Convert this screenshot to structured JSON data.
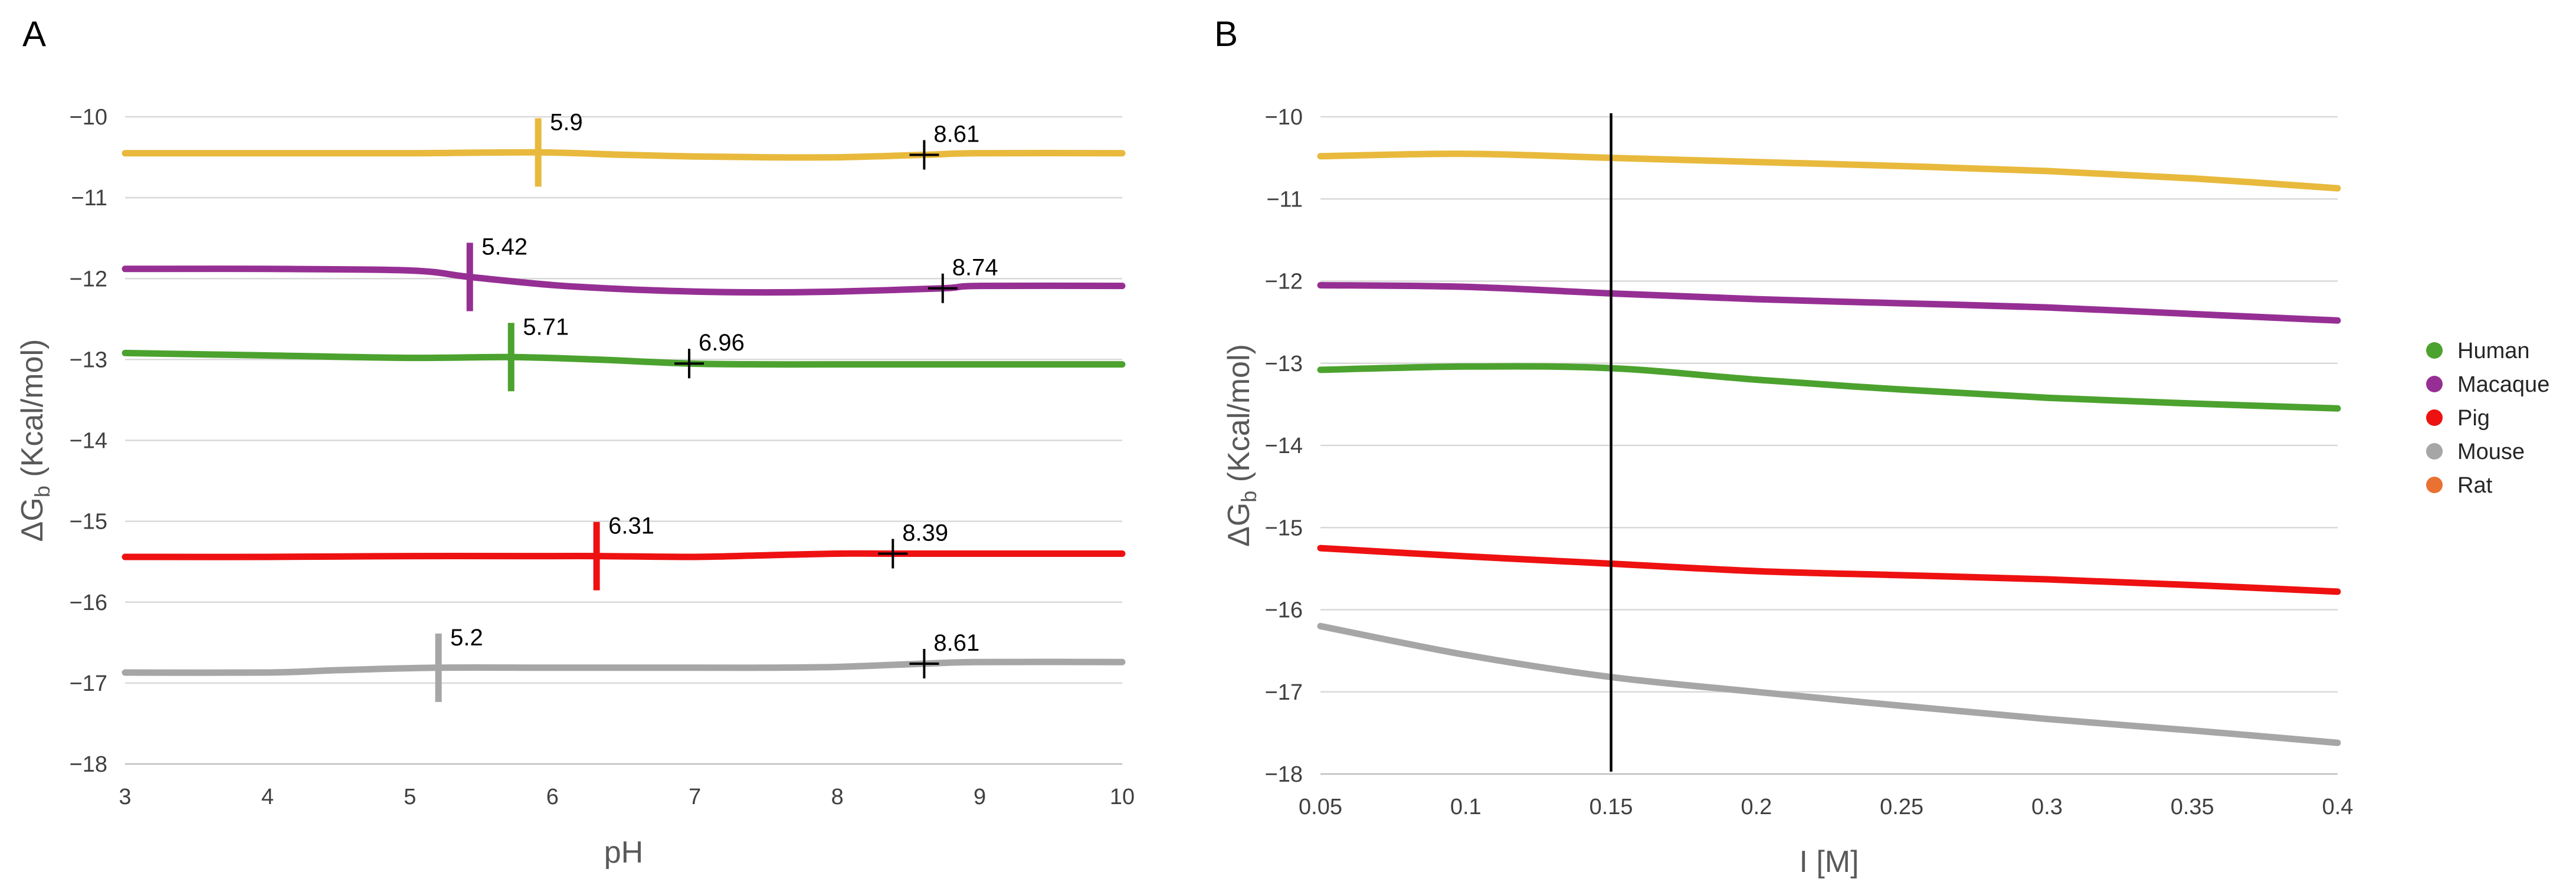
{
  "chart_data": [
    {
      "type": "line",
      "panel_label": "A",
      "xlabel": "pH",
      "ylabel_main": "ΔG",
      "ylabel_sub": "b",
      "ylabel_unit": " (Kcal/mol)",
      "xlim": [
        3,
        10
      ],
      "ylim": [
        -18,
        -10
      ],
      "xticks": [
        "3",
        "4",
        "5",
        "6",
        "7",
        "8",
        "9",
        "10"
      ],
      "yticks": [
        "−18",
        "−17",
        "−16",
        "−15",
        "−14",
        "−13",
        "−12",
        "−11",
        "−10"
      ],
      "grid": true,
      "series": [
        {
          "name": "Rat",
          "color": "#E8B93C",
          "x": [
            3,
            4,
            5,
            5.9,
            6.5,
            7,
            7.5,
            8,
            8.61,
            9,
            10
          ],
          "y": [
            -10.45,
            -10.45,
            -10.45,
            -10.44,
            -10.47,
            -10.49,
            -10.5,
            -10.5,
            -10.47,
            -10.45,
            -10.45
          ],
          "pka_lines": [
            {
              "x": 5.9,
              "label": "5.9",
              "type": "bar"
            },
            {
              "x": 8.61,
              "label": "8.61",
              "type": "cross"
            }
          ]
        },
        {
          "name": "Macaque",
          "color": "#962F94",
          "x": [
            3,
            4,
            5,
            5.42,
            6,
            6.5,
            7,
            7.5,
            8,
            8.74,
            9,
            10
          ],
          "y": [
            -11.88,
            -11.88,
            -11.9,
            -11.98,
            -12.08,
            -12.13,
            -12.16,
            -12.17,
            -12.16,
            -12.12,
            -12.09,
            -12.09
          ],
          "pka_lines": [
            {
              "x": 5.42,
              "label": "5.42",
              "type": "bar"
            },
            {
              "x": 8.74,
              "label": "8.74",
              "type": "cross"
            }
          ]
        },
        {
          "name": "Human",
          "color": "#4CA22E",
          "x": [
            3,
            4,
            5,
            5.71,
            6.3,
            6.96,
            7.5,
            8,
            9,
            10
          ],
          "y": [
            -12.92,
            -12.95,
            -12.98,
            -12.97,
            -13.0,
            -13.05,
            -13.06,
            -13.06,
            -13.06,
            -13.06
          ],
          "pka_lines": [
            {
              "x": 5.71,
              "label": "5.71",
              "type": "bar"
            },
            {
              "x": 6.96,
              "label": "6.96",
              "type": "cross"
            }
          ]
        },
        {
          "name": "Pig",
          "color": "#EE1111",
          "x": [
            3,
            4,
            5,
            6,
            6.31,
            7,
            7.5,
            8,
            8.39,
            9,
            10
          ],
          "y": [
            -15.44,
            -15.44,
            -15.43,
            -15.43,
            -15.43,
            -15.44,
            -15.42,
            -15.4,
            -15.4,
            -15.4,
            -15.4
          ],
          "pka_lines": [
            {
              "x": 6.31,
              "label": "6.31",
              "type": "bar"
            },
            {
              "x": 8.39,
              "label": "8.39",
              "type": "cross"
            }
          ]
        },
        {
          "name": "Mouse",
          "color": "#A6A6A6",
          "x": [
            3,
            4,
            4.5,
            5.2,
            6,
            7,
            7.5,
            8,
            8.61,
            9,
            10
          ],
          "y": [
            -16.87,
            -16.87,
            -16.84,
            -16.81,
            -16.81,
            -16.81,
            -16.81,
            -16.8,
            -16.76,
            -16.74,
            -16.74
          ],
          "pka_lines": [
            {
              "x": 5.2,
              "label": "5.2",
              "type": "bar"
            },
            {
              "x": 8.61,
              "label": "8.61",
              "type": "cross"
            }
          ]
        }
      ]
    },
    {
      "type": "line",
      "panel_label": "B",
      "xlabel": "I [M]",
      "ylabel_main": "ΔG",
      "ylabel_sub": "b",
      "ylabel_unit": " (Kcal/mol)",
      "xlim": [
        0.05,
        0.4
      ],
      "ylim": [
        -18,
        -10
      ],
      "xticks": [
        "0.05",
        "0.1",
        "0.15",
        "0.2",
        "0.25",
        "0.3",
        "0.35",
        "0.4"
      ],
      "yticks": [
        "−18",
        "−17",
        "−16",
        "−15",
        "−14",
        "−13",
        "−12",
        "−11",
        "−10"
      ],
      "grid": true,
      "reference_line_x": 0.15,
      "series": [
        {
          "name": "Rat",
          "color": "#E8B93C",
          "x": [
            0.05,
            0.1,
            0.15,
            0.2,
            0.25,
            0.3,
            0.35,
            0.4
          ],
          "y": [
            -10.48,
            -10.45,
            -10.5,
            -10.55,
            -10.6,
            -10.66,
            -10.75,
            -10.87
          ]
        },
        {
          "name": "Macaque",
          "color": "#962F94",
          "x": [
            0.05,
            0.1,
            0.15,
            0.2,
            0.25,
            0.3,
            0.35,
            0.4
          ],
          "y": [
            -12.05,
            -12.07,
            -12.15,
            -12.22,
            -12.27,
            -12.32,
            -12.4,
            -12.48
          ]
        },
        {
          "name": "Human",
          "color": "#4CA22E",
          "x": [
            0.05,
            0.1,
            0.15,
            0.2,
            0.25,
            0.3,
            0.35,
            0.4
          ],
          "y": [
            -13.08,
            -13.04,
            -13.06,
            -13.2,
            -13.32,
            -13.42,
            -13.49,
            -13.55
          ]
        },
        {
          "name": "Pig",
          "color": "#EE1111",
          "x": [
            0.05,
            0.1,
            0.15,
            0.2,
            0.25,
            0.3,
            0.35,
            0.4
          ],
          "y": [
            -15.25,
            -15.35,
            -15.44,
            -15.53,
            -15.58,
            -15.63,
            -15.7,
            -15.78
          ]
        },
        {
          "name": "Mouse",
          "color": "#A6A6A6",
          "x": [
            0.05,
            0.1,
            0.15,
            0.2,
            0.25,
            0.3,
            0.35,
            0.4
          ],
          "y": [
            -16.2,
            -16.55,
            -16.82,
            -17.0,
            -17.17,
            -17.33,
            -17.47,
            -17.62
          ]
        }
      ]
    }
  ],
  "legend": {
    "placement": "right",
    "items": [
      {
        "label": "Human",
        "color": "#4CA22E"
      },
      {
        "label": "Macaque",
        "color": "#962F94"
      },
      {
        "label": "Pig",
        "color": "#EE1111"
      },
      {
        "label": "Mouse",
        "color": "#A6A6A6"
      },
      {
        "label": "Rat",
        "color": "#E97132"
      }
    ]
  }
}
